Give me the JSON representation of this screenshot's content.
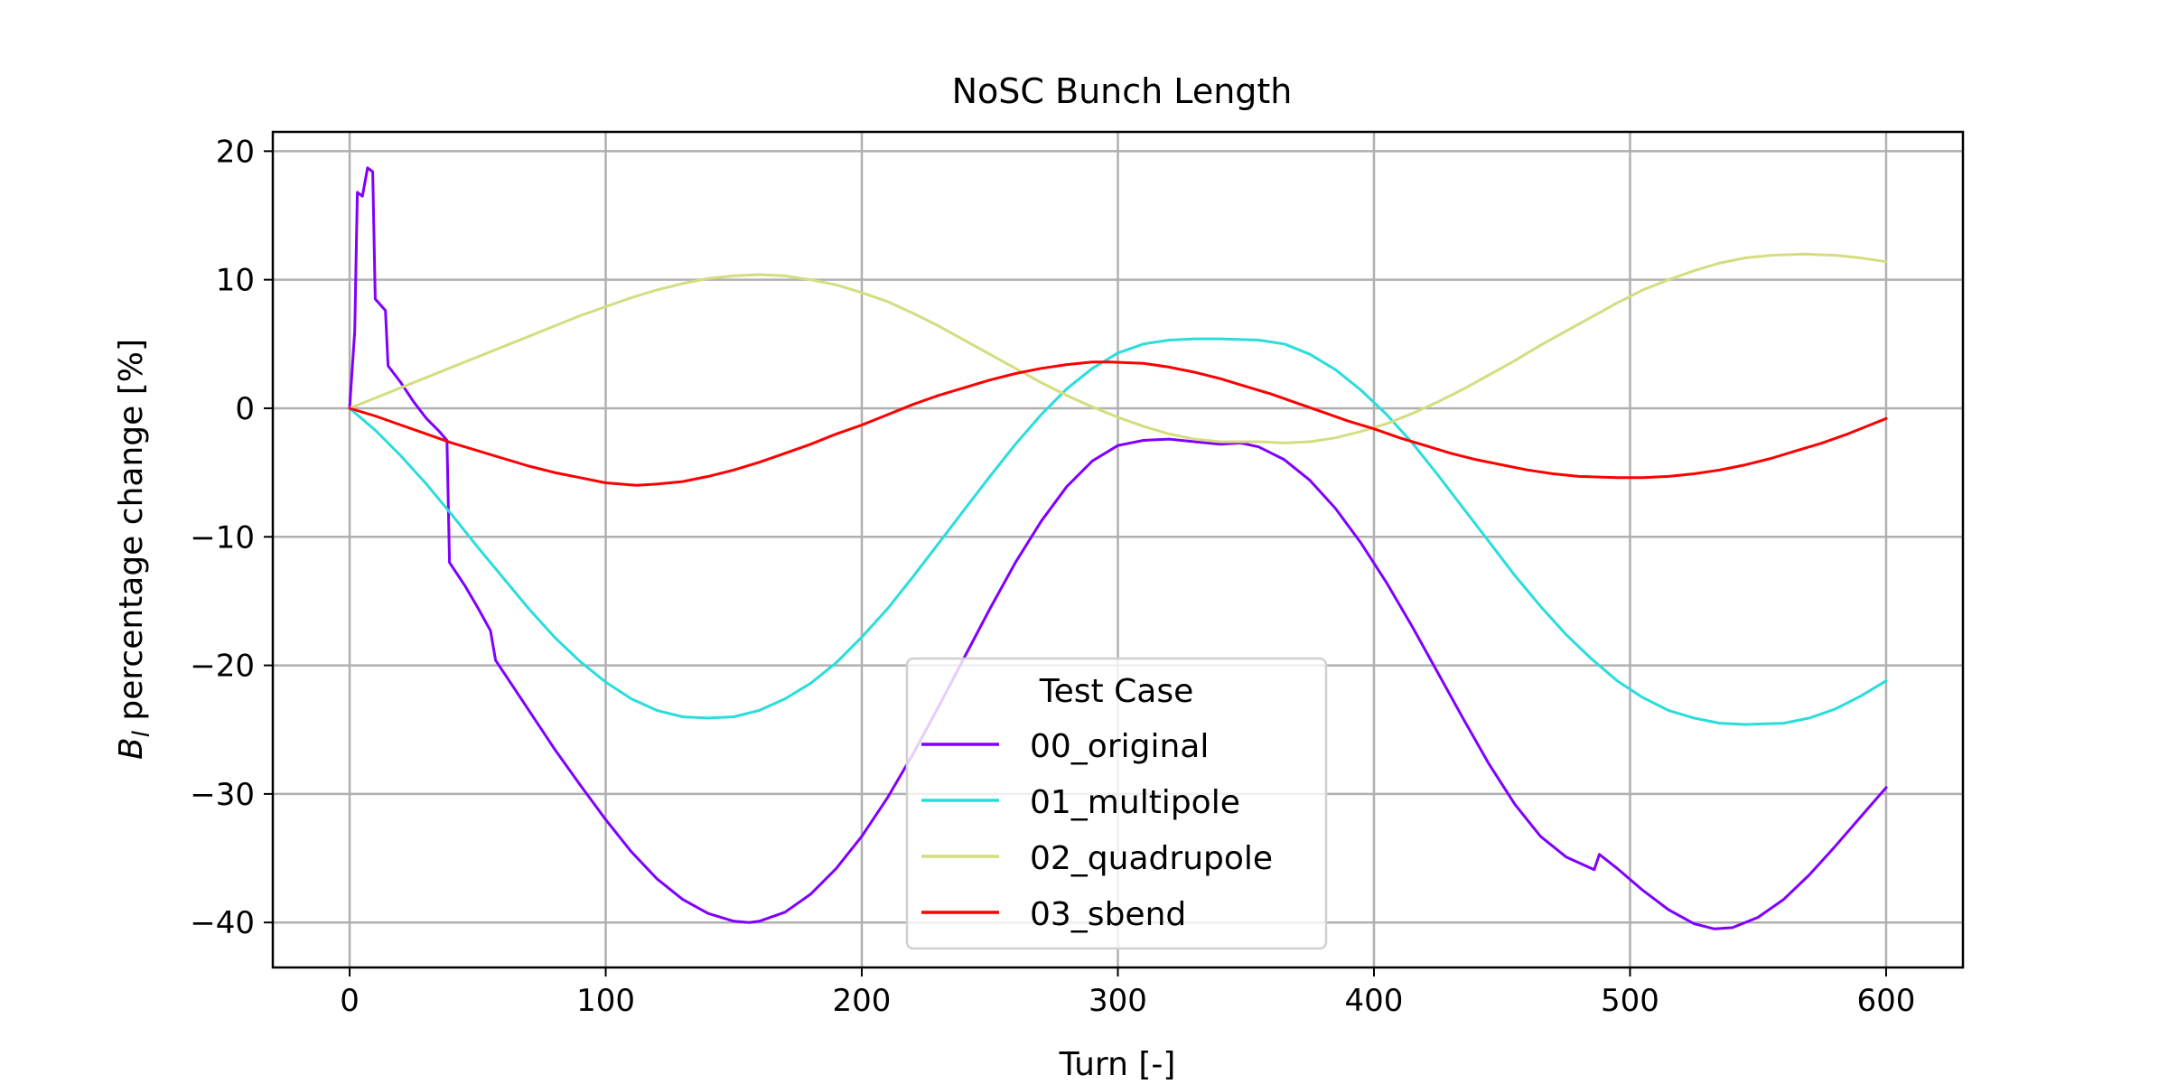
{
  "chart_data": {
    "type": "line",
    "title": "NoSC Bunch Length",
    "xlabel": "Turn [-]",
    "ylabel_main": "percentage change [%]",
    "ylabel_symbol": "B",
    "ylabel_subscript": "l",
    "xlim": [
      -30,
      630
    ],
    "ylim": [
      -43.5,
      21.5
    ],
    "xticks": [
      0,
      100,
      200,
      300,
      400,
      500,
      600
    ],
    "yticks": [
      20,
      10,
      0,
      -10,
      -20,
      -30,
      -40
    ],
    "xtick_labels": [
      "0",
      "100",
      "200",
      "300",
      "400",
      "500",
      "600"
    ],
    "ytick_labels": [
      "20",
      "10",
      "0",
      "−10",
      "−20",
      "−30",
      "−40"
    ],
    "grid": true,
    "legend": {
      "title": "Test Case",
      "placement": "lower-center"
    },
    "series": [
      {
        "name": "00_original",
        "color": "#8000ff",
        "points": [
          [
            0,
            0
          ],
          [
            2,
            6
          ],
          [
            3,
            16.8
          ],
          [
            5,
            16.5
          ],
          [
            7,
            18.7
          ],
          [
            9,
            18.4
          ],
          [
            10,
            8.5
          ],
          [
            14,
            7.6
          ],
          [
            15,
            3.3
          ],
          [
            20,
            2
          ],
          [
            25,
            0.5
          ],
          [
            30,
            -0.8
          ],
          [
            35,
            -1.8
          ],
          [
            38,
            -2.5
          ],
          [
            39,
            -12
          ],
          [
            45,
            -13.8
          ],
          [
            50,
            -15.5
          ],
          [
            55,
            -17.3
          ],
          [
            57,
            -19.6
          ],
          [
            60,
            -20.5
          ],
          [
            70,
            -23.5
          ],
          [
            80,
            -26.5
          ],
          [
            90,
            -29.3
          ],
          [
            100,
            -32
          ],
          [
            110,
            -34.5
          ],
          [
            120,
            -36.6
          ],
          [
            130,
            -38.2
          ],
          [
            140,
            -39.3
          ],
          [
            150,
            -39.9
          ],
          [
            156,
            -40.0
          ],
          [
            160,
            -39.9
          ],
          [
            170,
            -39.2
          ],
          [
            180,
            -37.8
          ],
          [
            190,
            -35.8
          ],
          [
            200,
            -33.3
          ],
          [
            210,
            -30.3
          ],
          [
            220,
            -26.9
          ],
          [
            230,
            -23.2
          ],
          [
            240,
            -19.4
          ],
          [
            250,
            -15.6
          ],
          [
            260,
            -12.0
          ],
          [
            270,
            -8.8
          ],
          [
            280,
            -6.1
          ],
          [
            290,
            -4.1
          ],
          [
            300,
            -2.9
          ],
          [
            310,
            -2.5
          ],
          [
            320,
            -2.4
          ],
          [
            330,
            -2.6
          ],
          [
            340,
            -2.8
          ],
          [
            348,
            -2.7
          ],
          [
            355,
            -3.0
          ],
          [
            365,
            -4.0
          ],
          [
            375,
            -5.6
          ],
          [
            385,
            -7.8
          ],
          [
            395,
            -10.5
          ],
          [
            405,
            -13.6
          ],
          [
            415,
            -17.0
          ],
          [
            425,
            -20.6
          ],
          [
            435,
            -24.2
          ],
          [
            445,
            -27.7
          ],
          [
            455,
            -30.8
          ],
          [
            465,
            -33.3
          ],
          [
            475,
            -34.9
          ],
          [
            486,
            -35.9
          ],
          [
            488,
            -34.7
          ],
          [
            495,
            -35.8
          ],
          [
            505,
            -37.5
          ],
          [
            515,
            -39.0
          ],
          [
            525,
            -40.1
          ],
          [
            533,
            -40.5
          ],
          [
            540,
            -40.4
          ],
          [
            550,
            -39.6
          ],
          [
            560,
            -38.2
          ],
          [
            570,
            -36.3
          ],
          [
            580,
            -34.1
          ],
          [
            590,
            -31.8
          ],
          [
            600,
            -29.5
          ]
        ]
      },
      {
        "name": "01_multipole",
        "color": "#2adddd",
        "points": [
          [
            0,
            0
          ],
          [
            10,
            -1.7
          ],
          [
            20,
            -3.7
          ],
          [
            30,
            -5.9
          ],
          [
            40,
            -8.3
          ],
          [
            50,
            -10.8
          ],
          [
            60,
            -13.2
          ],
          [
            70,
            -15.6
          ],
          [
            80,
            -17.8
          ],
          [
            90,
            -19.7
          ],
          [
            100,
            -21.3
          ],
          [
            110,
            -22.6
          ],
          [
            120,
            -23.5
          ],
          [
            130,
            -24.0
          ],
          [
            140,
            -24.1
          ],
          [
            150,
            -24.0
          ],
          [
            160,
            -23.5
          ],
          [
            170,
            -22.6
          ],
          [
            180,
            -21.4
          ],
          [
            190,
            -19.8
          ],
          [
            200,
            -17.8
          ],
          [
            210,
            -15.6
          ],
          [
            220,
            -13.1
          ],
          [
            230,
            -10.5
          ],
          [
            240,
            -7.9
          ],
          [
            250,
            -5.3
          ],
          [
            260,
            -2.8
          ],
          [
            270,
            -0.5
          ],
          [
            280,
            1.5
          ],
          [
            290,
            3.1
          ],
          [
            300,
            4.3
          ],
          [
            310,
            5.0
          ],
          [
            320,
            5.3
          ],
          [
            330,
            5.4
          ],
          [
            340,
            5.4
          ],
          [
            355,
            5.3
          ],
          [
            365,
            5.0
          ],
          [
            375,
            4.2
          ],
          [
            385,
            3.0
          ],
          [
            395,
            1.4
          ],
          [
            405,
            -0.5
          ],
          [
            415,
            -2.7
          ],
          [
            425,
            -5.2
          ],
          [
            435,
            -7.8
          ],
          [
            445,
            -10.4
          ],
          [
            455,
            -13.0
          ],
          [
            465,
            -15.4
          ],
          [
            475,
            -17.6
          ],
          [
            485,
            -19.5
          ],
          [
            495,
            -21.2
          ],
          [
            505,
            -22.5
          ],
          [
            515,
            -23.5
          ],
          [
            525,
            -24.1
          ],
          [
            535,
            -24.5
          ],
          [
            545,
            -24.6
          ],
          [
            560,
            -24.5
          ],
          [
            570,
            -24.1
          ],
          [
            580,
            -23.4
          ],
          [
            590,
            -22.4
          ],
          [
            600,
            -21.2
          ]
        ]
      },
      {
        "name": "02_quadrupole",
        "color": "#d4dd80",
        "points": [
          [
            0,
            0
          ],
          [
            10,
            0.8
          ],
          [
            20,
            1.6
          ],
          [
            30,
            2.4
          ],
          [
            40,
            3.2
          ],
          [
            50,
            4.0
          ],
          [
            60,
            4.8
          ],
          [
            70,
            5.6
          ],
          [
            80,
            6.4
          ],
          [
            90,
            7.2
          ],
          [
            100,
            7.9
          ],
          [
            110,
            8.6
          ],
          [
            120,
            9.2
          ],
          [
            130,
            9.7
          ],
          [
            140,
            10.1
          ],
          [
            150,
            10.3
          ],
          [
            160,
            10.4
          ],
          [
            170,
            10.3
          ],
          [
            180,
            10.0
          ],
          [
            190,
            9.6
          ],
          [
            200,
            9.0
          ],
          [
            210,
            8.3
          ],
          [
            220,
            7.4
          ],
          [
            230,
            6.4
          ],
          [
            240,
            5.3
          ],
          [
            250,
            4.2
          ],
          [
            260,
            3.1
          ],
          [
            270,
            2.0
          ],
          [
            280,
            1.0
          ],
          [
            290,
            0.1
          ],
          [
            300,
            -0.7
          ],
          [
            310,
            -1.4
          ],
          [
            320,
            -2.0
          ],
          [
            330,
            -2.4
          ],
          [
            340,
            -2.6
          ],
          [
            355,
            -2.6
          ],
          [
            365,
            -2.7
          ],
          [
            375,
            -2.6
          ],
          [
            385,
            -2.3
          ],
          [
            395,
            -1.8
          ],
          [
            405,
            -1.2
          ],
          [
            415,
            -0.4
          ],
          [
            425,
            0.5
          ],
          [
            435,
            1.5
          ],
          [
            445,
            2.6
          ],
          [
            455,
            3.7
          ],
          [
            465,
            4.9
          ],
          [
            475,
            6.0
          ],
          [
            485,
            7.1
          ],
          [
            495,
            8.2
          ],
          [
            505,
            9.2
          ],
          [
            515,
            10.0
          ],
          [
            525,
            10.7
          ],
          [
            535,
            11.3
          ],
          [
            545,
            11.7
          ],
          [
            555,
            11.9
          ],
          [
            568,
            12.0
          ],
          [
            580,
            11.9
          ],
          [
            590,
            11.7
          ],
          [
            600,
            11.4
          ]
        ]
      },
      {
        "name": "03_sbend",
        "color": "#ff0000",
        "points": [
          [
            0,
            0
          ],
          [
            10,
            -0.6
          ],
          [
            20,
            -1.3
          ],
          [
            30,
            -2.0
          ],
          [
            40,
            -2.7
          ],
          [
            50,
            -3.3
          ],
          [
            60,
            -3.9
          ],
          [
            70,
            -4.5
          ],
          [
            80,
            -5.0
          ],
          [
            90,
            -5.4
          ],
          [
            100,
            -5.8
          ],
          [
            112,
            -6.0
          ],
          [
            120,
            -5.9
          ],
          [
            130,
            -5.7
          ],
          [
            140,
            -5.3
          ],
          [
            150,
            -4.8
          ],
          [
            160,
            -4.2
          ],
          [
            170,
            -3.5
          ],
          [
            180,
            -2.8
          ],
          [
            190,
            -2.0
          ],
          [
            200,
            -1.3
          ],
          [
            210,
            -0.5
          ],
          [
            220,
            0.3
          ],
          [
            230,
            1.0
          ],
          [
            240,
            1.6
          ],
          [
            250,
            2.2
          ],
          [
            260,
            2.7
          ],
          [
            270,
            3.1
          ],
          [
            280,
            3.4
          ],
          [
            290,
            3.6
          ],
          [
            297,
            3.6
          ],
          [
            310,
            3.5
          ],
          [
            320,
            3.2
          ],
          [
            330,
            2.8
          ],
          [
            340,
            2.3
          ],
          [
            350,
            1.7
          ],
          [
            360,
            1.1
          ],
          [
            370,
            0.4
          ],
          [
            380,
            -0.3
          ],
          [
            390,
            -1.0
          ],
          [
            400,
            -1.6
          ],
          [
            410,
            -2.3
          ],
          [
            420,
            -2.9
          ],
          [
            430,
            -3.5
          ],
          [
            440,
            -4.0
          ],
          [
            450,
            -4.4
          ],
          [
            460,
            -4.8
          ],
          [
            470,
            -5.1
          ],
          [
            480,
            -5.3
          ],
          [
            495,
            -5.4
          ],
          [
            505,
            -5.4
          ],
          [
            515,
            -5.3
          ],
          [
            525,
            -5.1
          ],
          [
            535,
            -4.8
          ],
          [
            545,
            -4.4
          ],
          [
            555,
            -3.9
          ],
          [
            565,
            -3.3
          ],
          [
            575,
            -2.7
          ],
          [
            585,
            -2.0
          ],
          [
            595,
            -1.2
          ],
          [
            600,
            -0.8
          ]
        ]
      }
    ]
  }
}
